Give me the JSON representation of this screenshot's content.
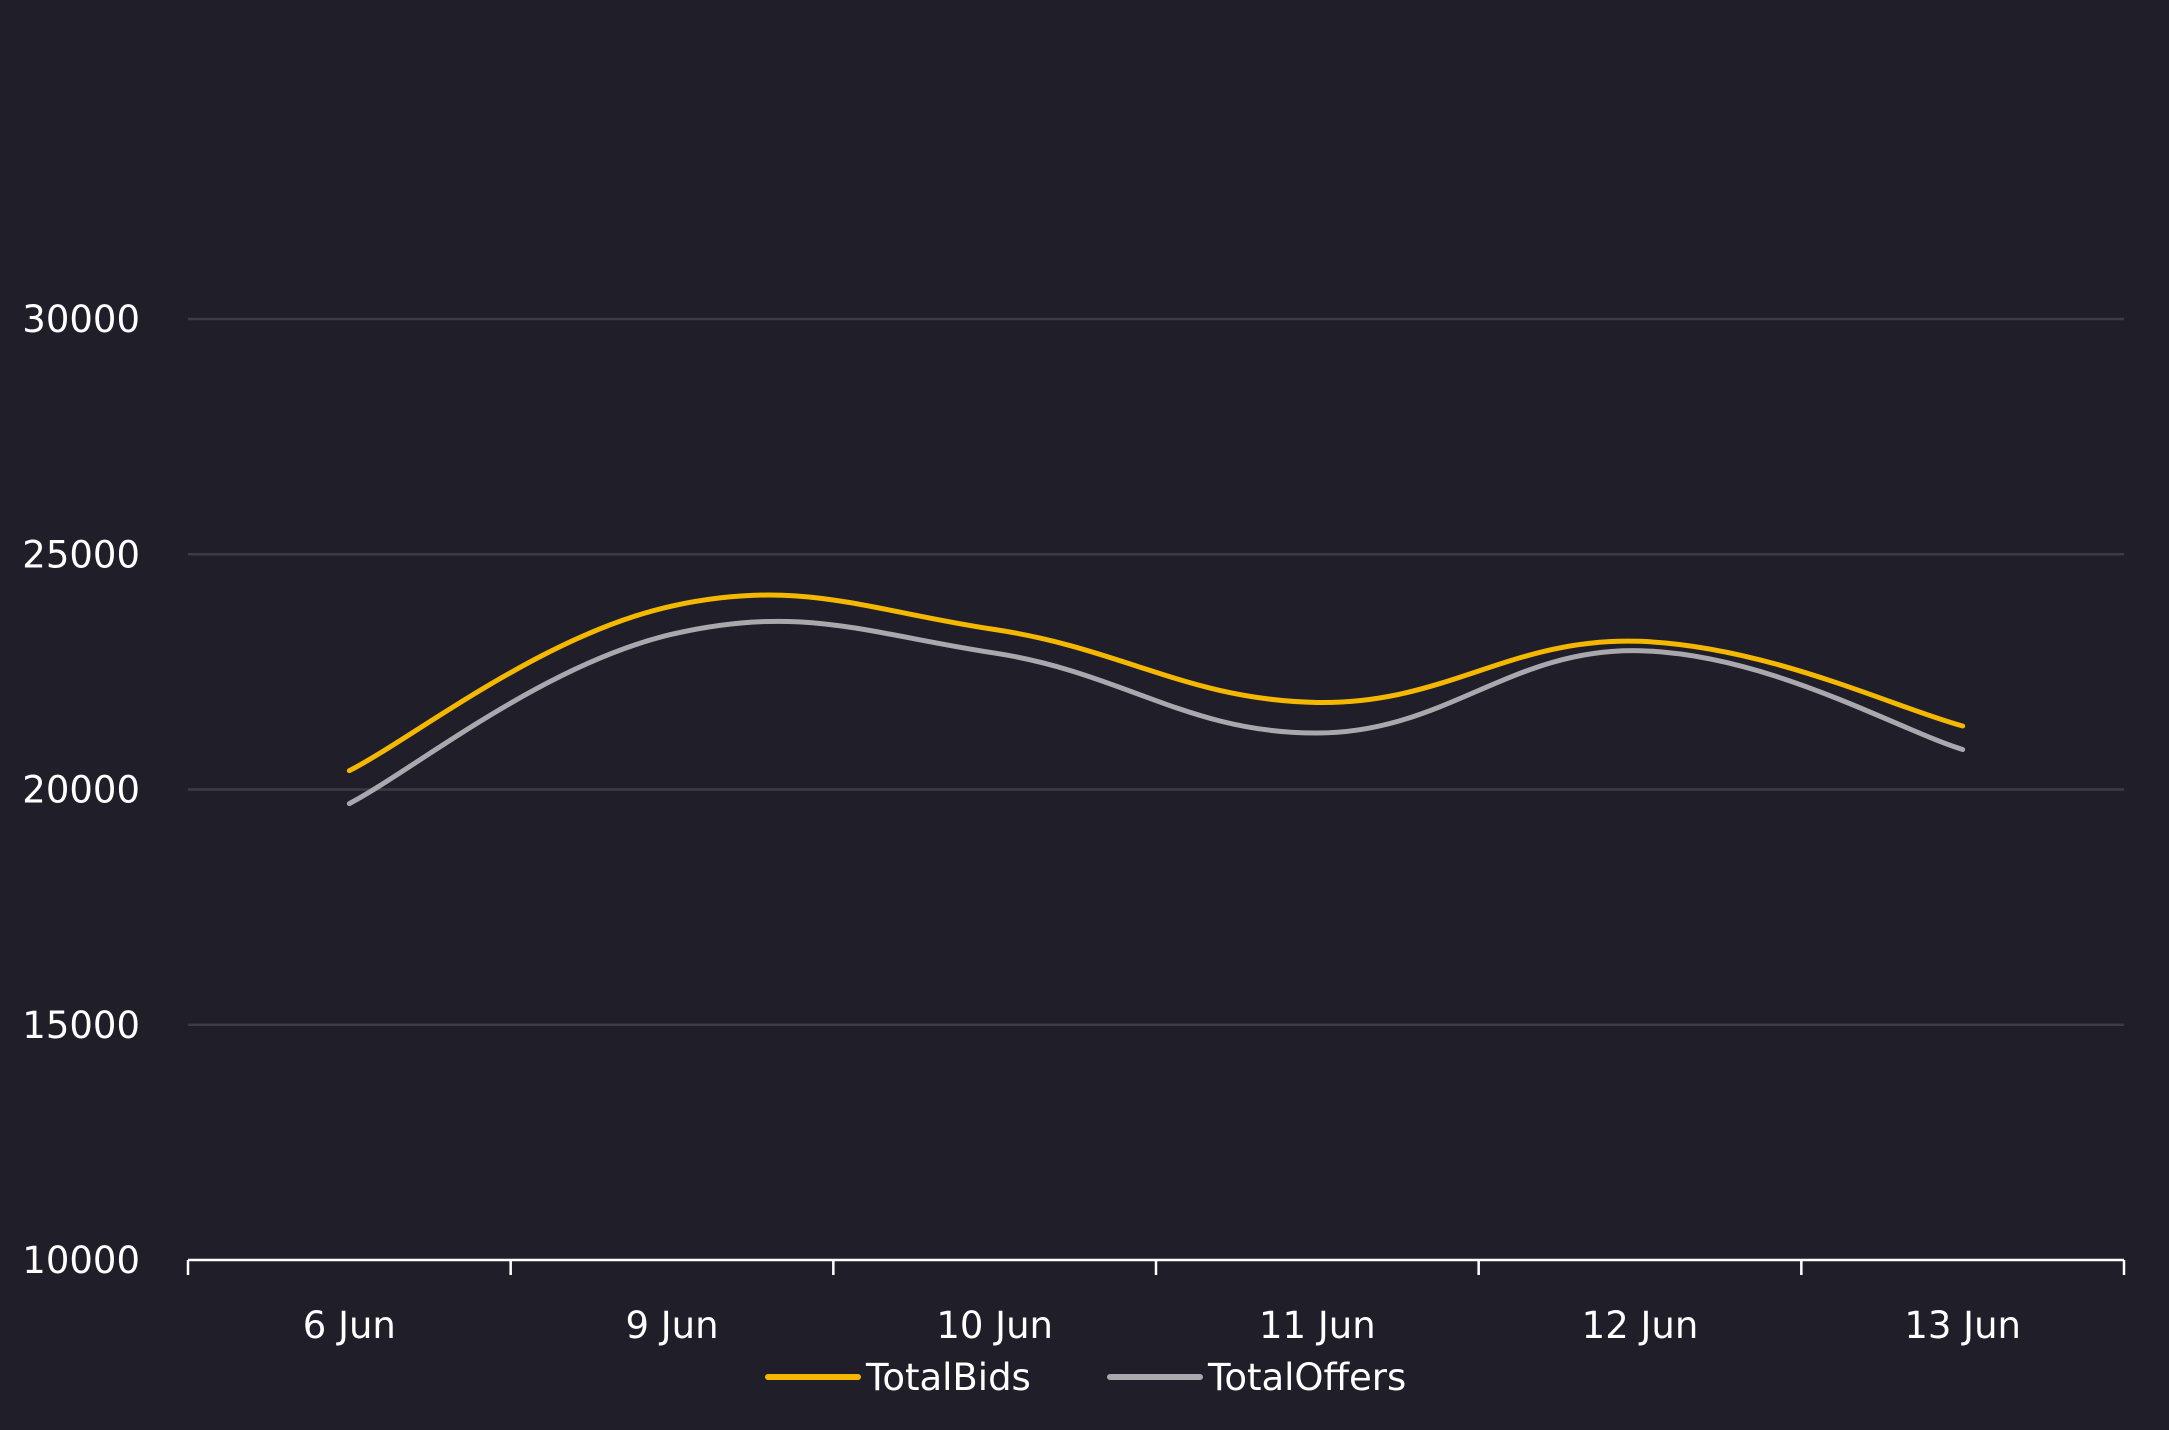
{
  "chart_data": {
    "type": "line",
    "categories": [
      "6 Jun",
      "9 Jun",
      "10 Jun",
      "11 Jun",
      "12 Jun",
      "13 Jun"
    ],
    "series": [
      {
        "name": "TotalBids",
        "color": "#f5b800",
        "points": [
          {
            "x": "6 Jun",
            "y": 20400
          },
          {
            "x": "9 Jun",
            "y": 23900
          },
          {
            "x": "10 Jun",
            "y": 23400
          },
          {
            "x": "11 Jun",
            "y": 21850
          },
          {
            "x": "12 Jun",
            "y": 23150
          },
          {
            "x": "13 Jun",
            "y": 21350
          }
        ]
      },
      {
        "name": "TotalOffers",
        "color": "#a8a8ad",
        "points": [
          {
            "x": "6 Jun",
            "y": 19700
          },
          {
            "x": "9 Jun",
            "y": 23300
          },
          {
            "x": "10 Jun",
            "y": 22900
          },
          {
            "x": "11 Jun",
            "y": 21200
          },
          {
            "x": "12 Jun",
            "y": 22950
          },
          {
            "x": "13 Jun",
            "y": 20850
          }
        ]
      }
    ],
    "y_ticks": [
      "10000",
      "15000",
      "20000",
      "25000",
      "30000"
    ],
    "ylim": [
      10000,
      30000
    ],
    "grid": true,
    "legend_position": "bottom",
    "title": "",
    "xlabel": "",
    "ylabel": ""
  },
  "colors": {
    "background": "#1f1e29",
    "grid": "#3d3c45",
    "axis": "#ffffff",
    "text": "#ffffff"
  }
}
